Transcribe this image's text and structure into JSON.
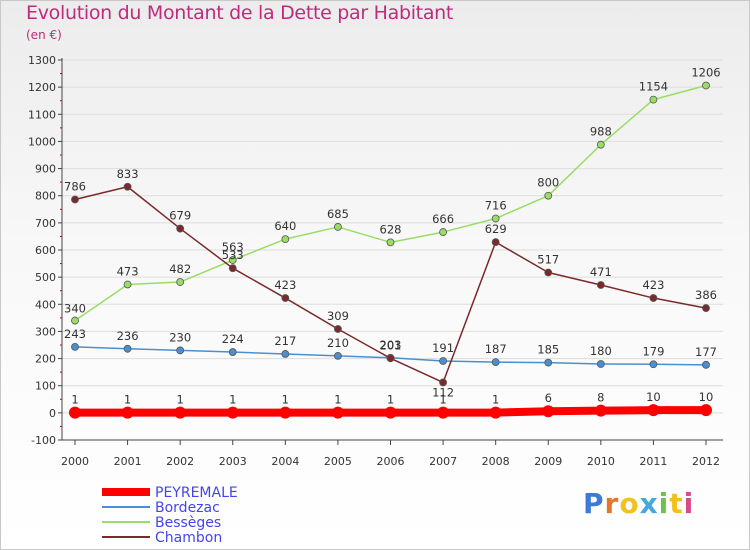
{
  "header": {
    "title": "Evolution du Montant de la Dette par Habitant",
    "subtitle": "(en €)"
  },
  "brand": {
    "text": "Proxiti",
    "letter_colors": [
      "#3a7bd5",
      "#e8742a",
      "#f2c21a",
      "#4aa5e0",
      "#6cc24a",
      "#f2c21a",
      "#d94a8c"
    ]
  },
  "chart_data": {
    "type": "line",
    "title": "Evolution du Montant de la Dette par Habitant",
    "subtitle": "(en €)",
    "xlabel": "",
    "ylabel": "",
    "x": [
      "2000",
      "2001",
      "2002",
      "2003",
      "2004",
      "2005",
      "2006",
      "2007",
      "2008",
      "2009",
      "2010",
      "2011",
      "2012"
    ],
    "ylim": [
      -100,
      1300
    ],
    "yticks": [
      "-100",
      "0",
      "100",
      "200",
      "300",
      "400",
      "500",
      "600",
      "700",
      "800",
      "900",
      "1000",
      "1100",
      "1200",
      "1300"
    ],
    "grid": "horizontal",
    "legend_position": "bottom-left",
    "series": [
      {
        "name": "PEYREMALE",
        "color": "#ff0000",
        "values": [
          1,
          1,
          1,
          1,
          1,
          1,
          1,
          1,
          1,
          6,
          8,
          10,
          10
        ],
        "labels": [
          "1",
          "1",
          "1",
          "1",
          "1",
          "1",
          "1",
          "1",
          "1",
          "6",
          "8",
          "10",
          "10"
        ]
      },
      {
        "name": "Bordezac",
        "color": "#4a8fd0",
        "values": [
          243,
          236,
          230,
          224,
          217,
          210,
          203,
          191,
          187,
          185,
          180,
          179,
          177
        ],
        "labels": [
          "243",
          "236",
          "230",
          "224",
          "217",
          "210",
          "203",
          "191",
          "187",
          "185",
          "180",
          "179",
          "177"
        ]
      },
      {
        "name": "Bessèges",
        "color": "#99dd66",
        "values": [
          340,
          473,
          482,
          563,
          640,
          685,
          628,
          666,
          716,
          800,
          988,
          1154,
          1206
        ],
        "labels": [
          "340",
          "473",
          "482",
          "563",
          "640",
          "685",
          "628",
          "666",
          "716",
          "800",
          "988",
          "1154",
          "1206"
        ]
      },
      {
        "name": "Chambon",
        "color": "#7a2a2a",
        "values": [
          786,
          833,
          679,
          533,
          423,
          309,
          201,
          112,
          629,
          517,
          471,
          423,
          386
        ],
        "labels": [
          "786",
          "833",
          "679",
          "533",
          "423",
          "309",
          "201",
          "112",
          "629",
          "517",
          "471",
          "423",
          "386"
        ]
      }
    ]
  }
}
